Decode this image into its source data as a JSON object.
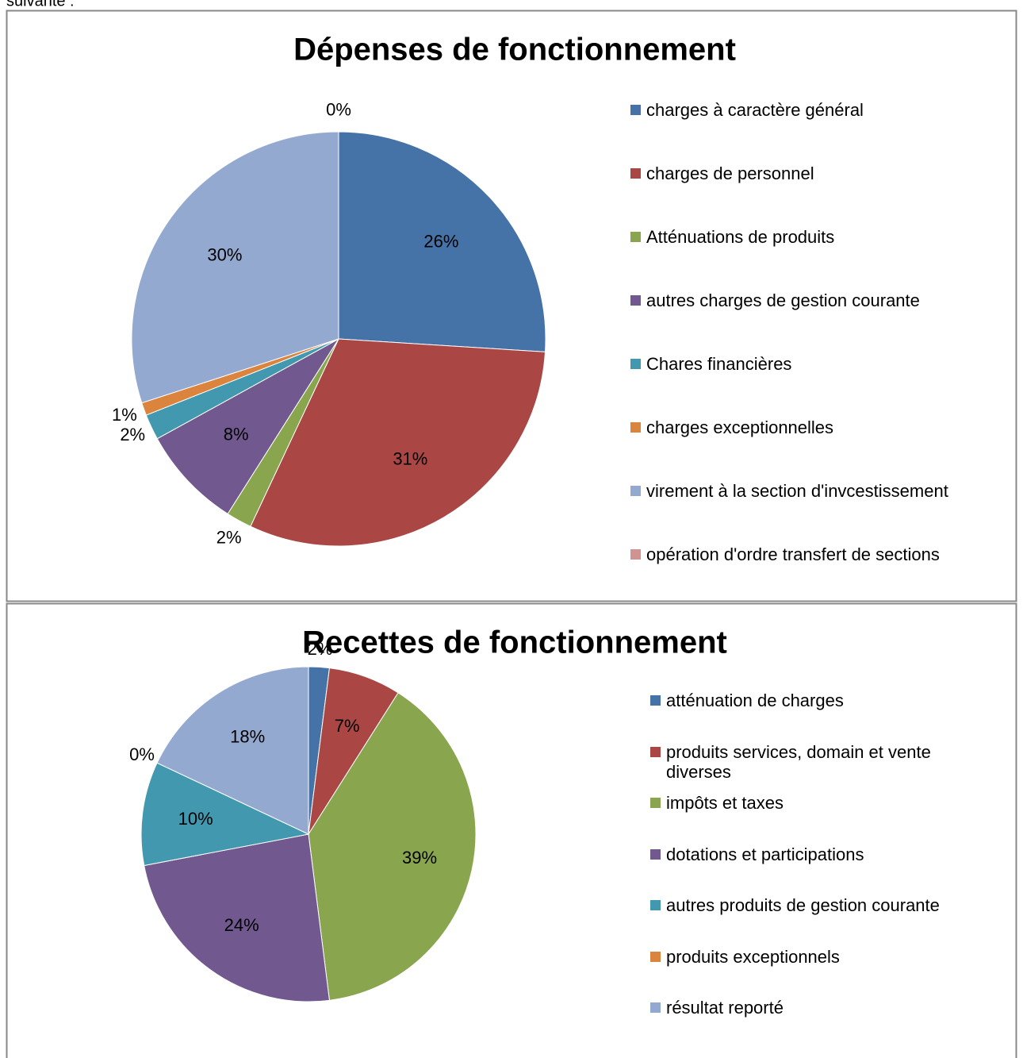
{
  "text": "suivante :",
  "chart_data": [
    {
      "type": "pie",
      "title": "Dépenses de fonctionnement",
      "categories": [
        "charges à caractère général",
        "charges de personnel",
        "Atténuations de produits",
        "autres charges de gestion courante",
        "Chares financières",
        "charges exceptionnelles",
        "virement à la section d'invcestissement",
        "opération d'ordre transfert de sections"
      ],
      "values": [
        26,
        31,
        2,
        8,
        2,
        1,
        30,
        0
      ],
      "value_labels": [
        "26%",
        "31%",
        "2%",
        "8%",
        "2%",
        "1%",
        "30%",
        "0%"
      ],
      "colors": [
        "#4572a7",
        "#aa4643",
        "#89a54e",
        "#71588f",
        "#4198af",
        "#db843d",
        "#93a9cf",
        "#d19392"
      ],
      "legend": "right"
    },
    {
      "type": "pie",
      "title": "Recettes de fonctionnement",
      "categories": [
        "atténuation de charges",
        "produits services, domain et vente diverses",
        "impôts et taxes",
        "dotations et participations",
        "autres produits de gestion courante",
        "produits exceptionnels",
        "résultat reporté"
      ],
      "values": [
        2,
        7,
        39,
        24,
        10,
        0,
        18
      ],
      "value_labels": [
        "2%",
        "7%",
        "39%",
        "24%",
        "10%",
        "0%",
        "18%"
      ],
      "colors": [
        "#4572a7",
        "#aa4643",
        "#89a54e",
        "#71588f",
        "#4198af",
        "#db843d",
        "#93a9cf"
      ],
      "legend": "right"
    }
  ]
}
